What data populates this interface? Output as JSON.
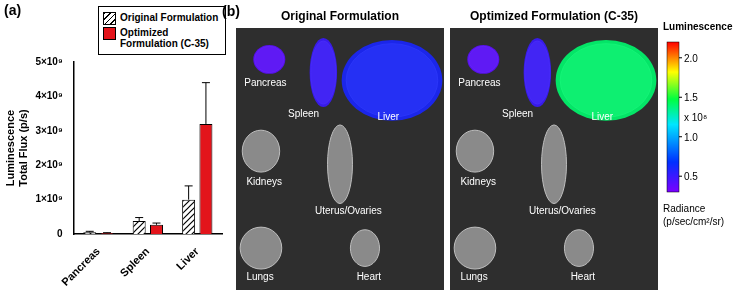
{
  "chart_data": {
    "type": "bar",
    "panel_label": "(a)",
    "categories": [
      "Pancreas",
      "Spleen",
      "Liver"
    ],
    "series": [
      {
        "name": "Original Formulation",
        "color": "#ffffff",
        "values": [
          50000000,
          380000000,
          1000000000
        ],
        "errors": [
          30000000,
          100000000,
          400000000
        ]
      },
      {
        "name": "Optimized Formulation (C-35)",
        "color": "#e3141b",
        "values": [
          30000000,
          270000000,
          3200000000
        ],
        "errors": [
          10000000,
          50000000,
          1200000000
        ]
      }
    ],
    "y_label": [
      "Luminescence",
      "Total Flux (p/s)"
    ],
    "ylim": [
      0,
      5000000000
    ],
    "yticks": [
      0,
      {
        "value": 1000000000,
        "label": "1×10⁹"
      },
      {
        "value": 2000000000,
        "label": "2×10⁹"
      },
      {
        "value": 3000000000,
        "label": "3×10⁹"
      },
      {
        "value": 4000000000,
        "label": "4×10⁹"
      },
      {
        "value": 5000000000,
        "label": "5×10⁹"
      }
    ],
    "grid": false,
    "legend": "top right"
  },
  "image_panel": {
    "panel_label": "(b)",
    "images": [
      {
        "title": "Original Formulation",
        "organs": [
          {
            "label": "Pancreas",
            "radiance": 40000000
          },
          {
            "label": "Spleen",
            "radiance": 50000000
          },
          {
            "label": "Liver",
            "radiance": 60000000
          },
          {
            "label": "Kidneys",
            "radiance": null
          },
          {
            "label": "Uterus/Ovaries",
            "radiance": null
          },
          {
            "label": "Lungs",
            "radiance": null
          },
          {
            "label": "Heart",
            "radiance": null
          }
        ]
      },
      {
        "title": "Optimized Formulation (C-35)",
        "organs": [
          {
            "label": "Pancreas",
            "radiance": 40000000
          },
          {
            "label": "Spleen",
            "radiance": 50000000
          },
          {
            "label": "Liver",
            "radiance": 140000000
          },
          {
            "label": "Kidneys",
            "radiance": null
          },
          {
            "label": "Uterus/Ovaries",
            "radiance": null
          },
          {
            "label": "Lungs",
            "radiance": null
          },
          {
            "label": "Heart",
            "radiance": null
          }
        ]
      }
    ],
    "colorbar": {
      "title": "Luminescence",
      "range": [
        30000000,
        220000000
      ],
      "ticks": [
        {
          "value": 50000000,
          "label": "0.5"
        },
        {
          "value": 100000000,
          "label": "1.0"
        },
        {
          "value": 150000000,
          "label": "1.5"
        },
        {
          "value": 200000000,
          "label": "2.0"
        }
      ],
      "multiplier": "x 10⁸",
      "label": [
        "Radiance",
        "(p/sec/cm²/sr)"
      ]
    }
  }
}
